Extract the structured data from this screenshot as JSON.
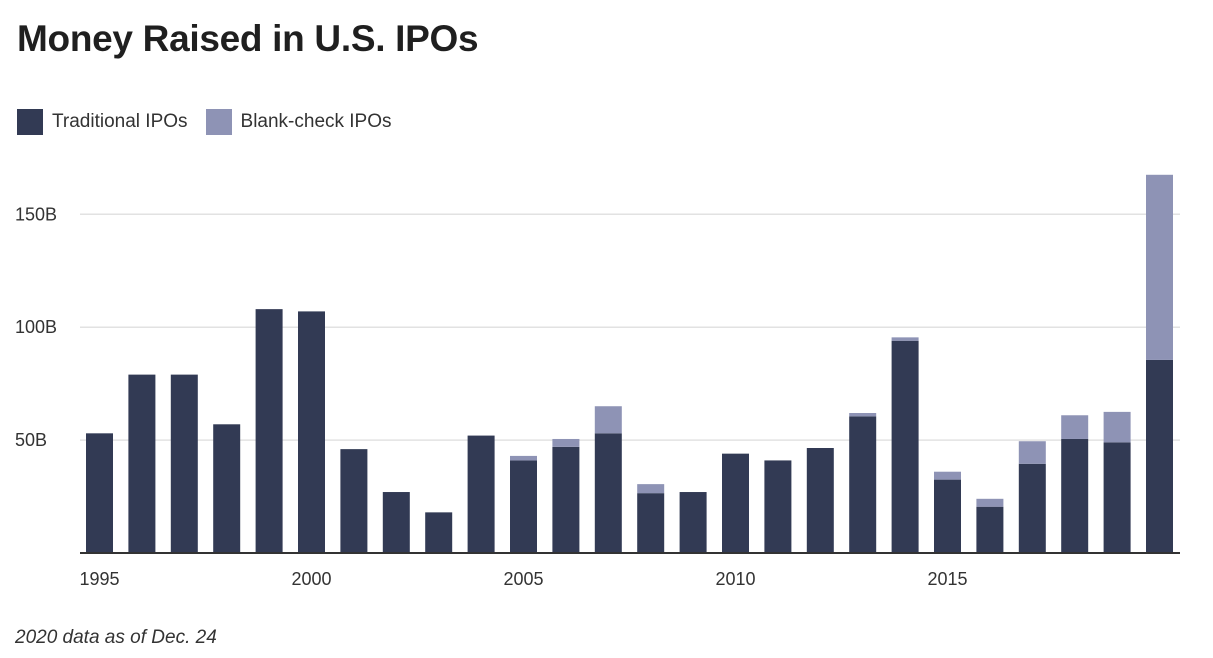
{
  "title": "Money Raised in U.S. IPOs",
  "note": "2020 data as of Dec. 24",
  "legend": {
    "traditional_label": "Traditional IPOs",
    "blank_check_label": "Blank-check IPOs"
  },
  "colors": {
    "traditional": "#323a54",
    "blank_check": "#8e93b5",
    "grid": "#e2e2e2",
    "axis": "#333333"
  },
  "chart_data": {
    "type": "bar",
    "stacked": true,
    "title": "Money Raised in U.S. IPOs",
    "xlabel": "",
    "ylabel": "",
    "ylim": [
      0,
      175
    ],
    "y_ticks": [
      50,
      100,
      150
    ],
    "y_tick_labels": [
      "50B",
      "100B",
      "150B"
    ],
    "x_tick_labels": [
      "1995",
      "2000",
      "2005",
      "2010",
      "2015"
    ],
    "legend_position": "top-left",
    "grid": true,
    "categories": [
      "1995",
      "1996",
      "1997",
      "1998",
      "1999",
      "2000",
      "2001",
      "2002",
      "2003",
      "2004",
      "2005",
      "2006",
      "2007",
      "2008",
      "2009",
      "2010",
      "2011",
      "2012",
      "2013",
      "2014",
      "2015",
      "2016",
      "2017",
      "2018",
      "2019",
      "2020"
    ],
    "series": [
      {
        "name": "Traditional IPOs",
        "values": [
          53,
          79,
          79,
          57,
          108,
          107,
          46,
          27,
          18,
          52,
          41,
          47,
          53,
          26.5,
          27,
          44,
          41,
          46.5,
          60.5,
          94,
          32.5,
          20.5,
          39.5,
          50.5,
          49,
          85.5
        ]
      },
      {
        "name": "Blank-check IPOs",
        "values": [
          0,
          0,
          0,
          0,
          0,
          0,
          0,
          0,
          0,
          0,
          2,
          3.5,
          12,
          4,
          0,
          0,
          0,
          0,
          1.5,
          1.5,
          3.5,
          3.5,
          10,
          10.5,
          13.5,
          82
        ]
      }
    ]
  }
}
